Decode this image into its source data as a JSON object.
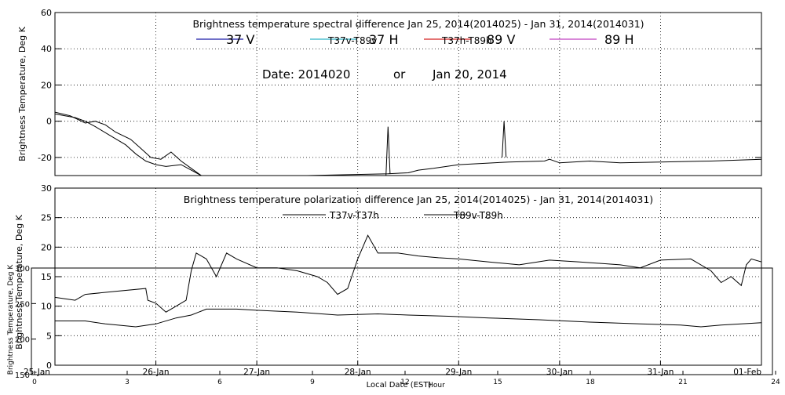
{
  "chart_data": [
    {
      "type": "line",
      "title": "Brightness temperature spectral difference     Jan 25, 2014(2014025) - Jan 31, 2014(2014031)",
      "ylabel": "Brightness Temperature, Deg K",
      "ylim": [
        -30,
        60
      ],
      "yticks": [
        "60",
        "40",
        "20",
        "0",
        "-20"
      ],
      "grid": true,
      "legend_position": "top",
      "legend": [
        {
          "label": "37 V",
          "color": "#1a1aa6"
        },
        {
          "label": "T37v-T89v",
          "color": "#2fb3c8"
        },
        {
          "label": "37 H",
          "color": "#2fb3c8"
        },
        {
          "label": "T37h-T89h",
          "color": "#d42020"
        },
        {
          "label": "89 V",
          "color": "#d42020"
        },
        {
          "label": "89 H",
          "color": "#c040c0"
        }
      ],
      "annotation": {
        "date_label": "Date: 2014020",
        "or_label": "or",
        "date_text": "Jan 20, 2014"
      },
      "series": [
        {
          "values": [
            [
              0,
              4
            ],
            [
              0.1,
              3
            ],
            [
              0.2,
              2
            ],
            [
              0.3,
              0
            ],
            [
              0.4,
              -3
            ],
            [
              0.55,
              -8
            ],
            [
              0.7,
              -13
            ],
            [
              0.8,
              -18
            ],
            [
              0.9,
              -22
            ],
            [
              1.0,
              -24
            ],
            [
              1.1,
              -25
            ],
            [
              1.25,
              -24
            ],
            [
              1.35,
              -27
            ],
            [
              1.45,
              -30
            ],
            [
              2.5,
              -30
            ],
            [
              3.3,
              -29
            ],
            [
              3.5,
              -28.5
            ],
            [
              3.6,
              -27
            ],
            [
              3.75,
              -26
            ],
            [
              4.0,
              -24
            ],
            [
              4.5,
              -22.5
            ],
            [
              4.85,
              -22
            ],
            [
              4.9,
              -21
            ],
            [
              5.0,
              -23
            ],
            [
              5.3,
              -22
            ],
            [
              5.6,
              -23
            ],
            [
              6.0,
              -22.5
            ],
            [
              6.5,
              -22
            ],
            [
              7.0,
              -21
            ],
            [
              7.4,
              -20.5
            ],
            [
              7.7,
              -20
            ],
            [
              7.9,
              -21
            ],
            [
              8.1,
              -23
            ],
            [
              8.3,
              -23
            ],
            [
              8.5,
              -24
            ],
            [
              8.7,
              -23
            ],
            [
              9.0,
              -24
            ]
          ]
        },
        {
          "values": [
            [
              0,
              5
            ],
            [
              0.15,
              3
            ],
            [
              0.3,
              -1
            ],
            [
              0.4,
              0
            ],
            [
              0.5,
              -2
            ],
            [
              0.6,
              -6
            ],
            [
              0.75,
              -10
            ],
            [
              0.85,
              -15
            ],
            [
              0.95,
              -20
            ],
            [
              1.05,
              -21
            ],
            [
              1.15,
              -17
            ],
            [
              1.25,
              -22
            ],
            [
              1.35,
              -26
            ],
            [
              1.45,
              -30
            ]
          ]
        },
        {
          "values": [
            [
              3.28,
              -30
            ],
            [
              3.3,
              -3
            ],
            [
              3.32,
              -29
            ]
          ]
        },
        {
          "values": [
            [
              4.43,
              -20
            ],
            [
              4.45,
              0
            ],
            [
              4.47,
              -20
            ]
          ]
        }
      ]
    },
    {
      "type": "line",
      "title": "Brightness temperature polarization difference     Jan 25, 2014(2014025) - Jan 31, 2014(2014031)",
      "ylabel": "Brightness Temperature, Deg K",
      "ylim": [
        0,
        30
      ],
      "yticks": [
        "30",
        "25",
        "20",
        "15",
        "10",
        "5",
        "0"
      ],
      "grid": true,
      "legend_position": "top",
      "legend": [
        {
          "label": "T37v-T37h",
          "color": "#000000"
        },
        {
          "label": "T89v-T89h",
          "color": "#000000"
        }
      ],
      "overlay": {
        "ylabel": "Brightness Temperature, Deg K",
        "ylim": [
          150,
          300
        ],
        "yticks": [
          "300",
          "250",
          "200",
          "150"
        ]
      },
      "xlabel": "Local Date (EST)",
      "xlabel_overlay": "Hour",
      "xlim": [
        0,
        7
      ],
      "x_ticks_primary": [
        "25-Jan",
        "26-Jan",
        "27-Jan",
        "28-Jan",
        "29-Jan",
        "30-Jan",
        "31-Jan",
        "01-Feb"
      ],
      "x_ticks_secondary": [
        "0",
        "3",
        "6",
        "9",
        "12",
        "15",
        "18",
        "21",
        "24"
      ],
      "series": [
        {
          "values": [
            [
              0,
              7.5
            ],
            [
              0.3,
              7.5
            ],
            [
              0.5,
              7
            ],
            [
              0.8,
              6.5
            ],
            [
              1.0,
              7
            ],
            [
              1.2,
              8
            ],
            [
              1.35,
              8.5
            ],
            [
              1.5,
              9.5
            ],
            [
              1.8,
              9.5
            ],
            [
              2.0,
              9.3
            ],
            [
              2.4,
              9
            ],
            [
              2.8,
              8.5
            ],
            [
              3.2,
              8.7
            ],
            [
              3.5,
              8.5
            ],
            [
              3.9,
              8.3
            ],
            [
              4.3,
              8
            ],
            [
              4.8,
              7.7
            ],
            [
              5.3,
              7.3
            ],
            [
              5.8,
              7
            ],
            [
              6.2,
              6.8
            ],
            [
              6.4,
              6.5
            ],
            [
              6.6,
              6.8
            ],
            [
              6.8,
              7
            ],
            [
              7.0,
              7.2
            ]
          ]
        },
        {
          "values": [
            [
              0,
              11.5
            ],
            [
              0.2,
              11
            ],
            [
              0.3,
              12
            ],
            [
              0.6,
              12.5
            ],
            [
              0.9,
              13
            ],
            [
              0.92,
              11
            ],
            [
              1.0,
              10.5
            ],
            [
              1.1,
              9
            ],
            [
              1.2,
              10
            ],
            [
              1.3,
              11
            ],
            [
              1.35,
              16
            ],
            [
              1.4,
              19
            ],
            [
              1.5,
              18
            ],
            [
              1.6,
              15
            ],
            [
              1.7,
              19
            ],
            [
              1.8,
              18
            ],
            [
              2.0,
              16.5
            ],
            [
              2.2,
              16.5
            ],
            [
              2.4,
              16
            ],
            [
              2.6,
              15
            ],
            [
              2.7,
              14
            ],
            [
              2.8,
              12
            ],
            [
              2.9,
              13
            ],
            [
              3.0,
              18
            ],
            [
              3.1,
              22
            ],
            [
              3.2,
              19
            ],
            [
              3.4,
              19
            ],
            [
              3.6,
              18.5
            ],
            [
              3.8,
              18.2
            ],
            [
              4.0,
              18
            ],
            [
              4.3,
              17.5
            ],
            [
              4.6,
              17
            ],
            [
              4.9,
              17.8
            ],
            [
              5.2,
              17.5
            ],
            [
              5.6,
              17
            ],
            [
              5.8,
              16.5
            ],
            [
              6.0,
              17.8
            ],
            [
              6.3,
              18
            ],
            [
              6.5,
              16
            ],
            [
              6.6,
              14
            ],
            [
              6.7,
              15
            ],
            [
              6.8,
              13.5
            ],
            [
              6.85,
              17
            ],
            [
              6.9,
              18
            ],
            [
              7.0,
              17.5
            ]
          ]
        }
      ]
    }
  ]
}
